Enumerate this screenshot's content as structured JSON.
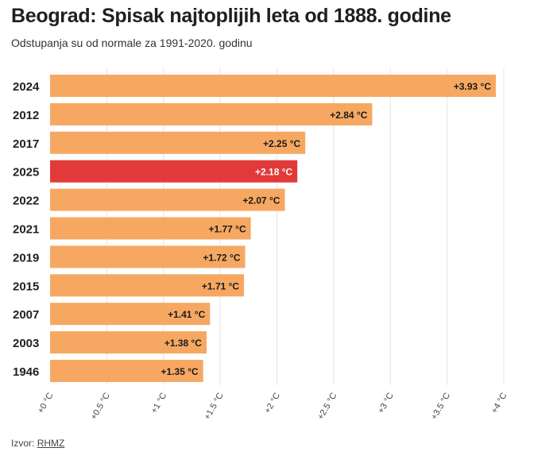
{
  "chart_data": {
    "type": "bar",
    "orientation": "horizontal",
    "title": "Beograd: Spisak najtoplijih leta od 1888. godine",
    "subtitle": "Odstupanja su od normale za 1991-2020. godinu",
    "categories": [
      "2024",
      "2012",
      "2017",
      "2025",
      "2022",
      "2021",
      "2019",
      "2015",
      "2007",
      "2003",
      "1946"
    ],
    "values": [
      3.93,
      2.84,
      2.25,
      2.18,
      2.07,
      1.77,
      1.72,
      1.71,
      1.41,
      1.38,
      1.35
    ],
    "data_labels": [
      "+3.93 °C",
      "+2.84 °C",
      "+2.25 °C",
      "+2.18 °C",
      "+2.07 °C",
      "+1.77 °C",
      "+1.72 °C",
      "+1.71 °C",
      "+1.41 °C",
      "+1.38 °C",
      "+1.35 °C"
    ],
    "highlight_category": "2025",
    "xlim": [
      0,
      4
    ],
    "xticks": [
      0,
      0.5,
      1,
      1.5,
      2,
      2.5,
      3,
      3.5,
      4
    ],
    "xtick_labels": [
      "+0 °C",
      "+0.5 °C",
      "+1 °C",
      "+1.5 °C",
      "+2 °C",
      "+2.5 °C",
      "+3 °C",
      "+3.5 °C",
      "+4 °C"
    ],
    "xlabel": "",
    "ylabel": "",
    "grid": true,
    "legend": "none"
  },
  "colors": {
    "bar": "#f6a862",
    "highlight": "#e23a3a",
    "grid": "#e4e4e4",
    "label_dark": "#1a1a1a",
    "label_light": "#ffffff"
  },
  "source": {
    "prefix": "Izvor:",
    "link_text": "RHMZ"
  }
}
